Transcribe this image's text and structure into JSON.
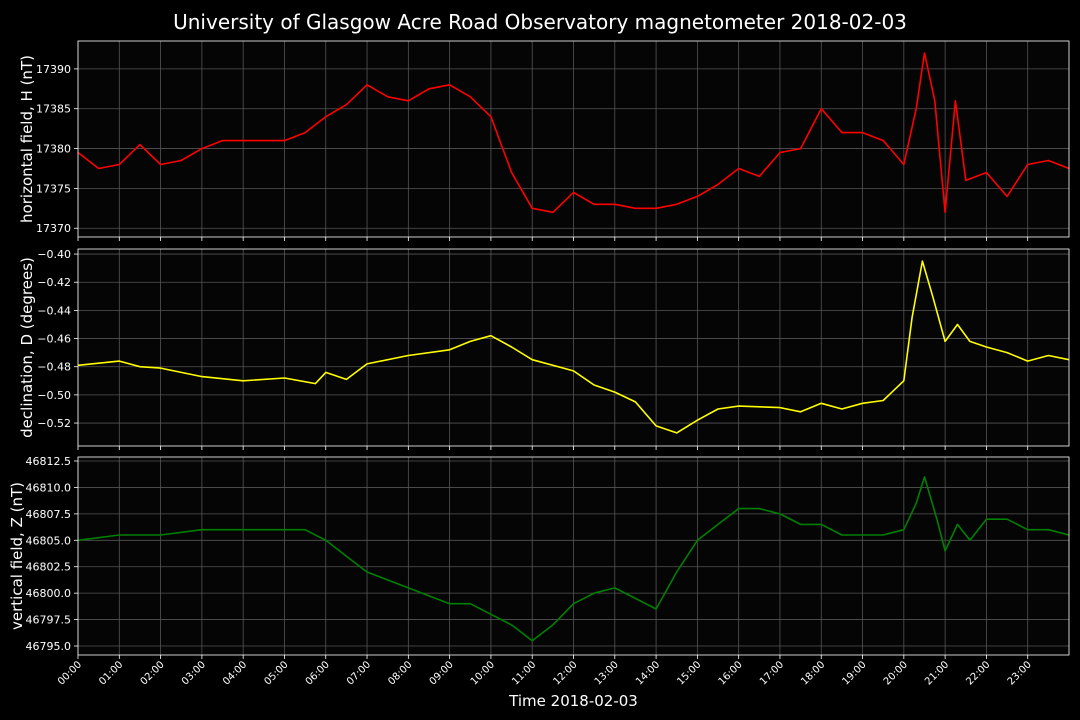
{
  "title": "University of Glasgow Acre Road Observatory magnetometer 2018-02-03",
  "chart_data": [
    {
      "type": "line",
      "ylabel": "horizontal field, H (nT)",
      "grid": true,
      "xlim": [
        0,
        24
      ],
      "ylim": [
        17368.9,
        17393.5
      ],
      "yticks": [
        17370,
        17375,
        17380,
        17385,
        17390
      ],
      "x": [
        0,
        0.5,
        1,
        1.5,
        2,
        2.5,
        3,
        3.5,
        4,
        4.5,
        5,
        5.5,
        6,
        6.5,
        7,
        7.5,
        8,
        8.5,
        9,
        9.5,
        10,
        10.5,
        11,
        11.5,
        12,
        12.5,
        13,
        13.5,
        14,
        14.5,
        15,
        15.5,
        16,
        16.5,
        17,
        17.5,
        18,
        18.5,
        19,
        19.5,
        20,
        20.3,
        20.5,
        20.75,
        21,
        21.25,
        21.5,
        22,
        22.5,
        23,
        23.5,
        24
      ],
      "series": [
        {
          "name": "H",
          "color": "#ff0000",
          "values": [
            17379.5,
            17377.5,
            17378,
            17380.5,
            17378,
            17378.5,
            17380,
            17381,
            17381,
            17381,
            17381,
            17382,
            17384,
            17385.5,
            17388,
            17386.5,
            17386,
            17387.5,
            17388,
            17386.5,
            17384,
            17377,
            17372.5,
            17372,
            17374.5,
            17373,
            17373,
            17372.5,
            17372.5,
            17373,
            17374,
            17375.5,
            17377.5,
            17376.5,
            17379.5,
            17380,
            17385,
            17382,
            17382,
            17381,
            17378,
            17385,
            17392,
            17386,
            17372,
            17386,
            17376,
            17377,
            17374,
            17378,
            17378.5,
            17377.5
          ]
        }
      ]
    },
    {
      "type": "line",
      "ylabel": "declination, D (degrees)",
      "grid": true,
      "xlim": [
        0,
        24
      ],
      "ylim": [
        -0.5363,
        -0.3964
      ],
      "yticks": [
        {
          "value": -0.52,
          "label": "−0.52"
        },
        {
          "value": -0.5,
          "label": "−0.50"
        },
        {
          "value": -0.48,
          "label": "−0.48"
        },
        {
          "value": -0.46,
          "label": "−0.46"
        },
        {
          "value": -0.44,
          "label": "−0.44"
        },
        {
          "value": -0.42,
          "label": "−0.42"
        },
        {
          "value": -0.4,
          "label": "−0.40"
        }
      ],
      "x": [
        0,
        1,
        1.5,
        2,
        3,
        4,
        5,
        5.75,
        6,
        6.5,
        7,
        8,
        9,
        9.5,
        10,
        10.5,
        11,
        12,
        12.5,
        13,
        13.5,
        14,
        14.5,
        15,
        15.5,
        16,
        17,
        17.5,
        18,
        18.5,
        19,
        19.5,
        20,
        20.2,
        20.45,
        20.7,
        21,
        21.3,
        21.6,
        22,
        22.5,
        23,
        23.5,
        24
      ],
      "series": [
        {
          "name": "D",
          "color": "#ffff00",
          "values": [
            -0.479,
            -0.476,
            -0.48,
            -0.481,
            -0.487,
            -0.49,
            -0.488,
            -0.492,
            -0.484,
            -0.489,
            -0.478,
            -0.472,
            -0.468,
            -0.462,
            -0.458,
            -0.466,
            -0.475,
            -0.483,
            -0.493,
            -0.498,
            -0.505,
            -0.522,
            -0.527,
            -0.518,
            -0.51,
            -0.508,
            -0.509,
            -0.512,
            -0.506,
            -0.51,
            -0.506,
            -0.504,
            -0.49,
            -0.445,
            -0.405,
            -0.43,
            -0.462,
            -0.45,
            -0.462,
            -0.466,
            -0.47,
            -0.476,
            -0.472,
            -0.475
          ]
        }
      ]
    },
    {
      "type": "line",
      "ylabel": "vertical field, Z (nT)",
      "xlabel": "Time 2018-02-03",
      "grid": true,
      "xlim": [
        0,
        24
      ],
      "ylim": [
        46794.15,
        46812.88
      ],
      "yticks": [
        {
          "value": 46795,
          "label": "46795.0"
        },
        {
          "value": 46797.5,
          "label": "46797.5"
        },
        {
          "value": 46800,
          "label": "46800.0"
        },
        {
          "value": 46802.5,
          "label": "46802.5"
        },
        {
          "value": 46805,
          "label": "46805.0"
        },
        {
          "value": 46807.5,
          "label": "46807.5"
        },
        {
          "value": 46810,
          "label": "46810.0"
        },
        {
          "value": 46812.5,
          "label": "46812.5"
        }
      ],
      "xticks": [
        {
          "value": 0,
          "label": "00:00"
        },
        {
          "value": 1,
          "label": "01:00"
        },
        {
          "value": 2,
          "label": "02:00"
        },
        {
          "value": 3,
          "label": "03:00"
        },
        {
          "value": 4,
          "label": "04:00"
        },
        {
          "value": 5,
          "label": "05:00"
        },
        {
          "value": 6,
          "label": "06:00"
        },
        {
          "value": 7,
          "label": "07:00"
        },
        {
          "value": 8,
          "label": "08:00"
        },
        {
          "value": 9,
          "label": "09:00"
        },
        {
          "value": 10,
          "label": "10:00"
        },
        {
          "value": 11,
          "label": "11:00"
        },
        {
          "value": 12,
          "label": "12:00"
        },
        {
          "value": 13,
          "label": "13:00"
        },
        {
          "value": 14,
          "label": "14:00"
        },
        {
          "value": 15,
          "label": "15:00"
        },
        {
          "value": 16,
          "label": "16:00"
        },
        {
          "value": 17,
          "label": "17:00"
        },
        {
          "value": 18,
          "label": "18:00"
        },
        {
          "value": 19,
          "label": "19:00"
        },
        {
          "value": 20,
          "label": "20:00"
        },
        {
          "value": 21,
          "label": "21:00"
        },
        {
          "value": 22,
          "label": "22:00"
        },
        {
          "value": 23,
          "label": "23:00"
        }
      ],
      "x": [
        0,
        1,
        2,
        3,
        4,
        5,
        5.5,
        6,
        6.5,
        7,
        8,
        9,
        9.5,
        10,
        10.5,
        11,
        11.5,
        12,
        12.5,
        13,
        13.5,
        14,
        14.5,
        15,
        15.5,
        16,
        16.5,
        17,
        17.5,
        18,
        18.5,
        19,
        19.5,
        20,
        20.3,
        20.5,
        20.8,
        21,
        21.3,
        21.6,
        22,
        22.5,
        23,
        23.5,
        24
      ],
      "series": [
        {
          "name": "Z",
          "color": "#008000",
          "values": [
            46805,
            46805.5,
            46805.5,
            46806,
            46806,
            46806,
            46806,
            46805,
            46803.5,
            46802,
            46800.5,
            46799,
            46799,
            46798,
            46797,
            46795.5,
            46797,
            46799,
            46800,
            46800.5,
            46799.5,
            46798.5,
            46802,
            46805,
            46806.5,
            46808,
            46808,
            46807.5,
            46806.5,
            46806.5,
            46805.5,
            46805.5,
            46805.5,
            46806,
            46808.5,
            46811,
            46807,
            46804,
            46806.5,
            46805,
            46807,
            46807,
            46806,
            46806,
            46805.5
          ]
        }
      ]
    }
  ]
}
